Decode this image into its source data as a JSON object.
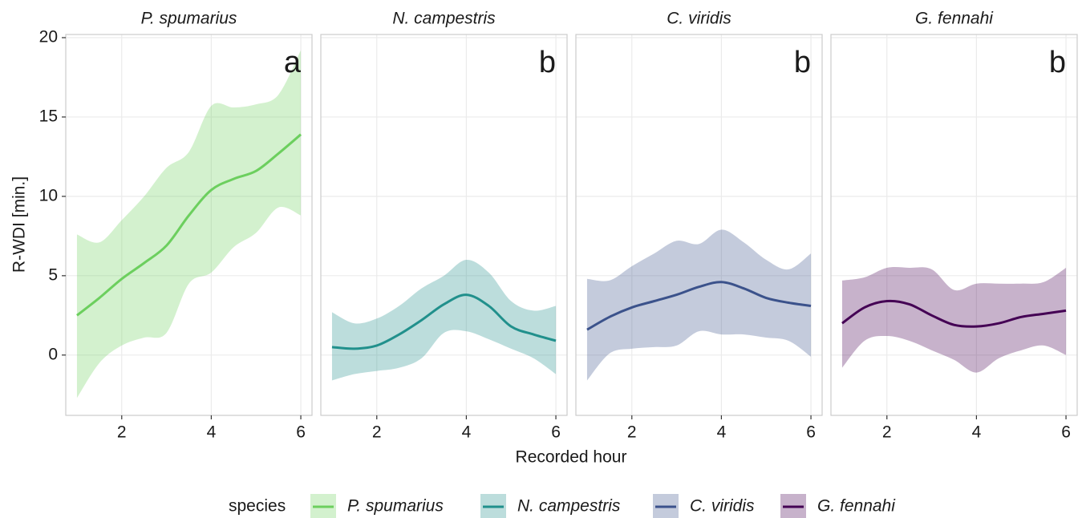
{
  "chart_data": {
    "type": "line",
    "x_label": "Recorded hour",
    "y_label": "R-WDI [min.]",
    "legend_title": "species",
    "x": [
      1,
      1.5,
      2,
      2.5,
      3,
      3.5,
      4,
      4.5,
      5,
      5.5,
      6
    ],
    "xlim": [
      0.75,
      6.25
    ],
    "xticks": [
      2,
      4,
      6
    ],
    "ylim": [
      -3.8,
      20.2
    ],
    "yticks": [
      0,
      5,
      10,
      15,
      20
    ],
    "grid": true,
    "series": [
      {
        "name": "P. spumarius",
        "panel_label": "a",
        "color": "#6ccf5e",
        "values": [
          2.5,
          3.6,
          4.8,
          5.8,
          6.9,
          8.8,
          10.4,
          11.1,
          11.6,
          12.7,
          13.9
        ],
        "upper": [
          7.6,
          7.1,
          8.5,
          10.0,
          11.8,
          12.8,
          15.7,
          15.6,
          15.8,
          16.4,
          19.2
        ],
        "lower": [
          -2.7,
          -0.5,
          0.6,
          1.1,
          1.4,
          4.5,
          5.2,
          6.8,
          7.7,
          9.3,
          8.8
        ]
      },
      {
        "name": "N. campestris",
        "panel_label": "b",
        "color": "#21908c",
        "values": [
          0.5,
          0.4,
          0.6,
          1.3,
          2.2,
          3.2,
          3.8,
          3.1,
          1.8,
          1.3,
          0.9
        ],
        "upper": [
          2.7,
          2.0,
          2.3,
          3.1,
          4.2,
          5.0,
          6.0,
          5.2,
          3.4,
          2.8,
          3.1
        ],
        "lower": [
          -1.6,
          -1.2,
          -1.0,
          -0.8,
          -0.2,
          1.4,
          1.5,
          1.0,
          0.4,
          -0.2,
          -1.2
        ]
      },
      {
        "name": "C. viridis",
        "panel_label": "b",
        "color": "#3b528b",
        "values": [
          1.6,
          2.4,
          3.0,
          3.4,
          3.8,
          4.3,
          4.6,
          4.2,
          3.6,
          3.3,
          3.1
        ],
        "upper": [
          4.8,
          4.7,
          5.6,
          6.4,
          7.2,
          7.0,
          7.9,
          7.1,
          6.0,
          5.4,
          6.4
        ],
        "lower": [
          -1.6,
          0.1,
          0.4,
          0.5,
          0.6,
          1.5,
          1.3,
          1.3,
          1.1,
          0.9,
          -0.1
        ]
      },
      {
        "name": "G. fennahi",
        "panel_label": "b",
        "color": "#440154",
        "values": [
          2.0,
          3.0,
          3.4,
          3.2,
          2.5,
          1.9,
          1.8,
          2.0,
          2.4,
          2.6,
          2.8
        ],
        "upper": [
          4.7,
          4.9,
          5.5,
          5.5,
          5.4,
          4.1,
          4.5,
          4.5,
          4.5,
          4.6,
          5.5
        ],
        "lower": [
          -0.8,
          0.9,
          1.2,
          0.9,
          0.3,
          -0.3,
          -1.1,
          -0.2,
          0.3,
          0.6,
          0.0
        ]
      }
    ]
  }
}
